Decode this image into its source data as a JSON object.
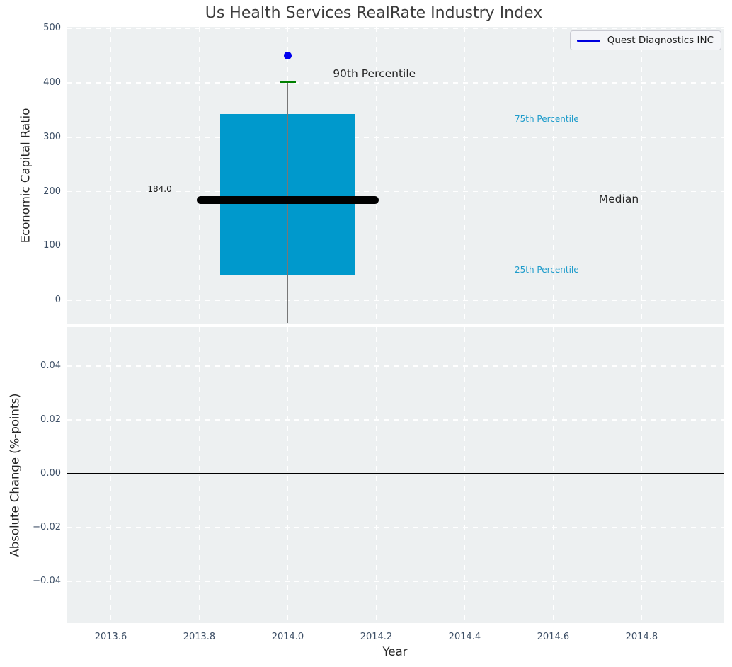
{
  "title": "Us Health Services RealRate Industry Index",
  "xlabel": "Year",
  "legend": {
    "label": "Quest Diagnostics INC"
  },
  "colors": {
    "box_fill": "#0099cc",
    "median_line": "#000000",
    "whisker": "#777777",
    "percentile_cap": "#008000",
    "company_point": "#0000ee",
    "legend_line": "#0000e0",
    "panel_bg": "#edf0f1",
    "grid": "#ffffff",
    "tick_label": "#3d4f66",
    "cyan_label": "#1f9ccb",
    "zero_line": "#000000"
  },
  "xticks": [
    {
      "value": 2013.6,
      "label": "2013.6"
    },
    {
      "value": 2013.8,
      "label": "2013.8"
    },
    {
      "value": 2014.0,
      "label": "2014.0"
    },
    {
      "value": 2014.2,
      "label": "2014.2"
    },
    {
      "value": 2014.4,
      "label": "2014.4"
    },
    {
      "value": 2014.6,
      "label": "2014.6"
    },
    {
      "value": 2014.8,
      "label": "2014.8"
    }
  ],
  "chart_data": [
    {
      "type": "boxplot",
      "title": "Us Health Services RealRate Industry Index",
      "ylabel": "Economic Capital Ratio",
      "xlabel": "Year",
      "xlim": [
        2013.5,
        2014.985
      ],
      "ylim": [
        -44,
        503
      ],
      "grid": "white dashed, on",
      "legend_position": "upper right",
      "yticks": [
        {
          "value": 0,
          "label": "0"
        },
        {
          "value": 100,
          "label": "100"
        },
        {
          "value": 200,
          "label": "200"
        },
        {
          "value": 300,
          "label": "300"
        },
        {
          "value": 400,
          "label": "400"
        },
        {
          "value": 500,
          "label": "500"
        }
      ],
      "box": {
        "x": 2014.0,
        "p90": 402,
        "p75": 343,
        "median": 184,
        "p25": 46,
        "median_label": "184.0",
        "whisker_extends_below_view": true,
        "box_halfwidth_years": 0.152,
        "median_halfwidth_years": 0.205,
        "cap_halfwidth_years": 0.018
      },
      "company_point": {
        "label": "Quest Diagnostics INC",
        "x": 2014.0,
        "y": 450
      },
      "annotations": [
        {
          "text": "90th Percentile",
          "x": 2014.102,
          "y": 417,
          "anchor": "left",
          "style": "large-dark"
        },
        {
          "text": "75th Percentile",
          "x": 2014.513,
          "y": 334,
          "anchor": "left",
          "style": "small-cyan"
        },
        {
          "text": "Median",
          "x": 2014.703,
          "y": 186,
          "anchor": "left",
          "style": "large-dark"
        },
        {
          "text": "25th Percentile",
          "x": 2014.513,
          "y": 56,
          "anchor": "left",
          "style": "small-cyan"
        },
        {
          "text": "184.0",
          "x": 2013.738,
          "y": 205,
          "anchor": "right",
          "style": "tiny-dark"
        }
      ]
    },
    {
      "type": "line",
      "ylabel": "Absolute Change (%-points)",
      "xlim": [
        2013.5,
        2014.985
      ],
      "ylim": [
        -0.0555,
        0.0545
      ],
      "grid": "white dashed, on",
      "yticks": [
        {
          "value": 0.04,
          "label": "0.04"
        },
        {
          "value": 0.02,
          "label": "0.02"
        },
        {
          "value": 0,
          "label": "0.00"
        },
        {
          "value": -0.02,
          "label": "−0.02"
        },
        {
          "value": -0.04,
          "label": "−0.04"
        }
      ],
      "zero_line_y": 0.0
    }
  ]
}
